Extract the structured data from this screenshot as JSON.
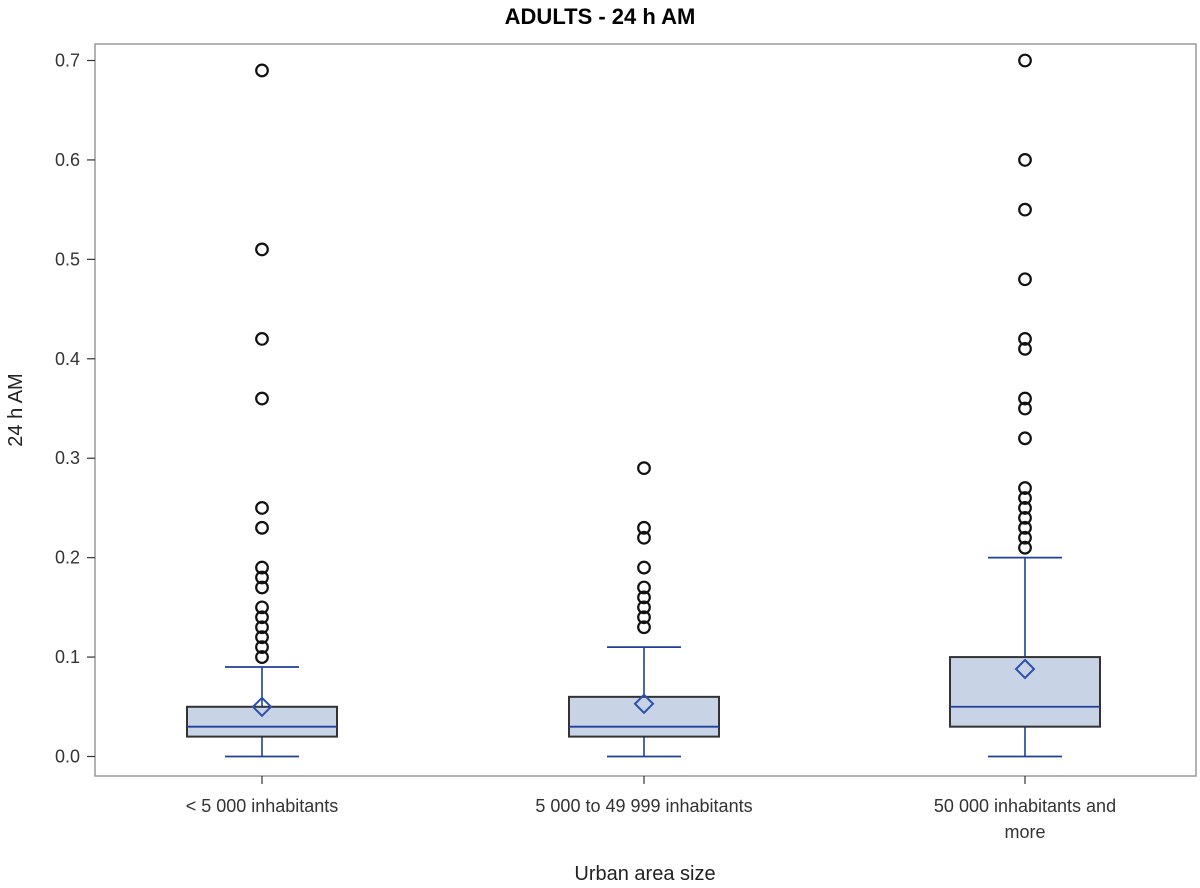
{
  "chart_data": {
    "type": "box",
    "title": "ADULTS - 24 h AM",
    "xlabel": "Urban area size",
    "ylabel": "24 h AM",
    "ylim": [
      0.0,
      0.7
    ],
    "yticks": [
      "0.0",
      "0.1",
      "0.2",
      "0.3",
      "0.4",
      "0.5",
      "0.6",
      "0.7"
    ],
    "grid": false,
    "colors": {
      "box_fill": "#c8d4e6",
      "box_edge": "#333333",
      "whisker": "#1f3f9a",
      "median": "#1f3f9a",
      "mean_marker": "#2a50b0",
      "outlier": "#111111",
      "frame": "#999999"
    },
    "categories": [
      {
        "label_lines": [
          "< 5 000 inhabitants"
        ],
        "min": 0.0,
        "q1": 0.02,
        "median": 0.03,
        "q3": 0.05,
        "max": 0.09,
        "mean": 0.05,
        "outliers": [
          0.1,
          0.11,
          0.12,
          0.13,
          0.14,
          0.15,
          0.17,
          0.18,
          0.19,
          0.23,
          0.25,
          0.36,
          0.42,
          0.51,
          0.69
        ]
      },
      {
        "label_lines": [
          "5 000 to 49 999 inhabitants"
        ],
        "min": 0.0,
        "q1": 0.02,
        "median": 0.03,
        "q3": 0.06,
        "max": 0.11,
        "mean": 0.053,
        "outliers": [
          0.13,
          0.14,
          0.15,
          0.16,
          0.17,
          0.19,
          0.22,
          0.23,
          0.29
        ]
      },
      {
        "label_lines": [
          "50 000 inhabitants and",
          "more"
        ],
        "min": 0.0,
        "q1": 0.03,
        "median": 0.05,
        "q3": 0.1,
        "max": 0.2,
        "mean": 0.088,
        "outliers": [
          0.21,
          0.22,
          0.23,
          0.24,
          0.25,
          0.26,
          0.27,
          0.32,
          0.35,
          0.36,
          0.41,
          0.42,
          0.48,
          0.55,
          0.6,
          0.7
        ]
      }
    ]
  }
}
